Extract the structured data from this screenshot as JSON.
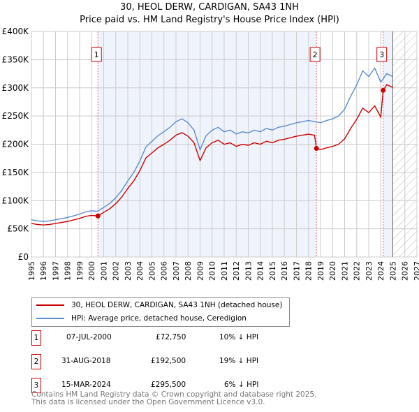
{
  "title": "30, HEOL DERW, CARDIGAN, SA43 1NH",
  "subtitle": "Price paid vs. HM Land Registry's House Price Index (HPI)",
  "chart_data": {
    "type": "line",
    "xlim": [
      1995,
      2027
    ],
    "ylim": [
      0,
      400000
    ],
    "x_ticks": [
      "1995",
      "1996",
      "1997",
      "1998",
      "1999",
      "2000",
      "2001",
      "2002",
      "2003",
      "2004",
      "2005",
      "2006",
      "2007",
      "2008",
      "2009",
      "2010",
      "2011",
      "2012",
      "2013",
      "2014",
      "2015",
      "2016",
      "2017",
      "2018",
      "2019",
      "2020",
      "2021",
      "2022",
      "2023",
      "2024",
      "2025",
      "2026",
      "2027"
    ],
    "y_ticks": [
      {
        "v": 0,
        "label": "£0"
      },
      {
        "v": 50000,
        "label": "£50K"
      },
      {
        "v": 100000,
        "label": "£100K"
      },
      {
        "v": 150000,
        "label": "£150K"
      },
      {
        "v": 200000,
        "label": "£200K"
      },
      {
        "v": 250000,
        "label": "£250K"
      },
      {
        "v": 300000,
        "label": "£300K"
      },
      {
        "v": 350000,
        "label": "£350K"
      },
      {
        "v": 400000,
        "label": "£400K"
      }
    ],
    "grid": true,
    "forecast_from": 2025.0,
    "series": [
      {
        "name": "30, HEOL DERW, CARDIGAN, SA43 1NH (detached house)",
        "color": "#cc0000",
        "points": [
          [
            1995,
            59.4
          ],
          [
            1995.5,
            57.6
          ],
          [
            1996,
            56.7
          ],
          [
            1996.5,
            57.6
          ],
          [
            1997,
            59.4
          ],
          [
            1997.5,
            61.2
          ],
          [
            1998,
            63
          ],
          [
            1998.5,
            65.7
          ],
          [
            1999,
            68.4
          ],
          [
            1999.5,
            72
          ],
          [
            2000,
            73.8
          ],
          [
            2000.52,
            72.75
          ],
          [
            2001,
            79.2
          ],
          [
            2001.5,
            85.5
          ],
          [
            2002,
            94.5
          ],
          [
            2002.5,
            106.2
          ],
          [
            2003,
            121.5
          ],
          [
            2003.5,
            135
          ],
          [
            2004,
            153
          ],
          [
            2004.5,
            175.5
          ],
          [
            2005,
            184.5
          ],
          [
            2005.5,
            193.5
          ],
          [
            2006,
            199.8
          ],
          [
            2006.5,
            207
          ],
          [
            2007,
            216
          ],
          [
            2007.5,
            220.5
          ],
          [
            2008,
            214.2
          ],
          [
            2008.5,
            202.5
          ],
          [
            2009,
            171
          ],
          [
            2009.5,
            193.5
          ],
          [
            2010,
            202.5
          ],
          [
            2010.5,
            207
          ],
          [
            2011,
            199.8
          ],
          [
            2011.5,
            202.5
          ],
          [
            2012,
            196.2
          ],
          [
            2012.5,
            199.8
          ],
          [
            2013,
            198
          ],
          [
            2013.5,
            202.5
          ],
          [
            2014,
            199.8
          ],
          [
            2014.5,
            205.2
          ],
          [
            2015,
            202.5
          ],
          [
            2015.5,
            207
          ],
          [
            2016,
            208.8
          ],
          [
            2016.5,
            211.5
          ],
          [
            2017,
            214.2
          ],
          [
            2017.5,
            216
          ],
          [
            2018,
            217.8
          ],
          [
            2018.5,
            216
          ],
          [
            2018.66,
            192.5
          ],
          [
            2019,
            190.4
          ],
          [
            2019.5,
            193.6
          ],
          [
            2020,
            196
          ],
          [
            2020.5,
            200
          ],
          [
            2021,
            209.6
          ],
          [
            2021.5,
            228
          ],
          [
            2022,
            244
          ],
          [
            2022.5,
            264
          ],
          [
            2023,
            256
          ],
          [
            2023.5,
            268
          ],
          [
            2024,
            248
          ],
          [
            2024.2,
            295.5
          ],
          [
            2024.5,
            305.5
          ],
          [
            2025,
            300.8
          ]
        ]
      },
      {
        "name": "HPI: Average price, detached house, Ceredigion",
        "color": "#5b8ccc",
        "points": [
          [
            1995,
            66
          ],
          [
            1995.5,
            64
          ],
          [
            1996,
            63
          ],
          [
            1996.5,
            64
          ],
          [
            1997,
            66
          ],
          [
            1997.5,
            68
          ],
          [
            1998,
            70
          ],
          [
            1998.5,
            73
          ],
          [
            1999,
            76
          ],
          [
            1999.5,
            80
          ],
          [
            2000,
            82
          ],
          [
            2000.5,
            81
          ],
          [
            2001,
            88
          ],
          [
            2001.5,
            95
          ],
          [
            2002,
            105
          ],
          [
            2002.5,
            118
          ],
          [
            2003,
            135
          ],
          [
            2003.5,
            150
          ],
          [
            2004,
            170
          ],
          [
            2004.5,
            195
          ],
          [
            2005,
            205
          ],
          [
            2005.5,
            215
          ],
          [
            2006,
            222
          ],
          [
            2006.5,
            230
          ],
          [
            2007,
            240
          ],
          [
            2007.5,
            245
          ],
          [
            2008,
            238
          ],
          [
            2008.5,
            225
          ],
          [
            2009,
            190
          ],
          [
            2009.5,
            215
          ],
          [
            2010,
            225
          ],
          [
            2010.5,
            230
          ],
          [
            2011,
            222
          ],
          [
            2011.5,
            225
          ],
          [
            2012,
            218
          ],
          [
            2012.5,
            222
          ],
          [
            2013,
            220
          ],
          [
            2013.5,
            225
          ],
          [
            2014,
            222
          ],
          [
            2014.5,
            228
          ],
          [
            2015,
            225
          ],
          [
            2015.5,
            230
          ],
          [
            2016,
            232
          ],
          [
            2016.5,
            235
          ],
          [
            2017,
            238
          ],
          [
            2017.5,
            240
          ],
          [
            2018,
            242
          ],
          [
            2018.5,
            240
          ],
          [
            2019,
            238
          ],
          [
            2019.5,
            242
          ],
          [
            2020,
            245
          ],
          [
            2020.5,
            250
          ],
          [
            2021,
            262
          ],
          [
            2021.5,
            285
          ],
          [
            2022,
            305
          ],
          [
            2022.5,
            330
          ],
          [
            2023,
            320
          ],
          [
            2023.5,
            335
          ],
          [
            2024,
            310
          ],
          [
            2024.5,
            325
          ],
          [
            2025,
            320
          ]
        ]
      }
    ],
    "value_unit": "thousands GBP",
    "annotations": [
      {
        "label": "1",
        "x": 2000.52,
        "y": 72.75
      },
      {
        "label": "2",
        "x": 2018.66,
        "y": 192.5
      },
      {
        "label": "3",
        "x": 2024.2,
        "y": 295.5
      }
    ]
  },
  "legend": {
    "red": "30, HEOL DERW, CARDIGAN, SA43 1NH (detached house)",
    "blue": "HPI: Average price, detached house, Ceredigion"
  },
  "sales": [
    {
      "num": "1",
      "date": "07-JUL-2000",
      "price": "£72,750",
      "hpi": "10% ↓ HPI"
    },
    {
      "num": "2",
      "date": "31-AUG-2018",
      "price": "£192,500",
      "hpi": "19% ↓ HPI"
    },
    {
      "num": "3",
      "date": "15-MAR-2024",
      "price": "£295,500",
      "hpi": "6% ↓ HPI"
    }
  ],
  "footer": {
    "line1": "Contains HM Land Registry data © Crown copyright and database right 2025.",
    "line2": "This data is licensed under the Open Government Licence v3.0."
  }
}
